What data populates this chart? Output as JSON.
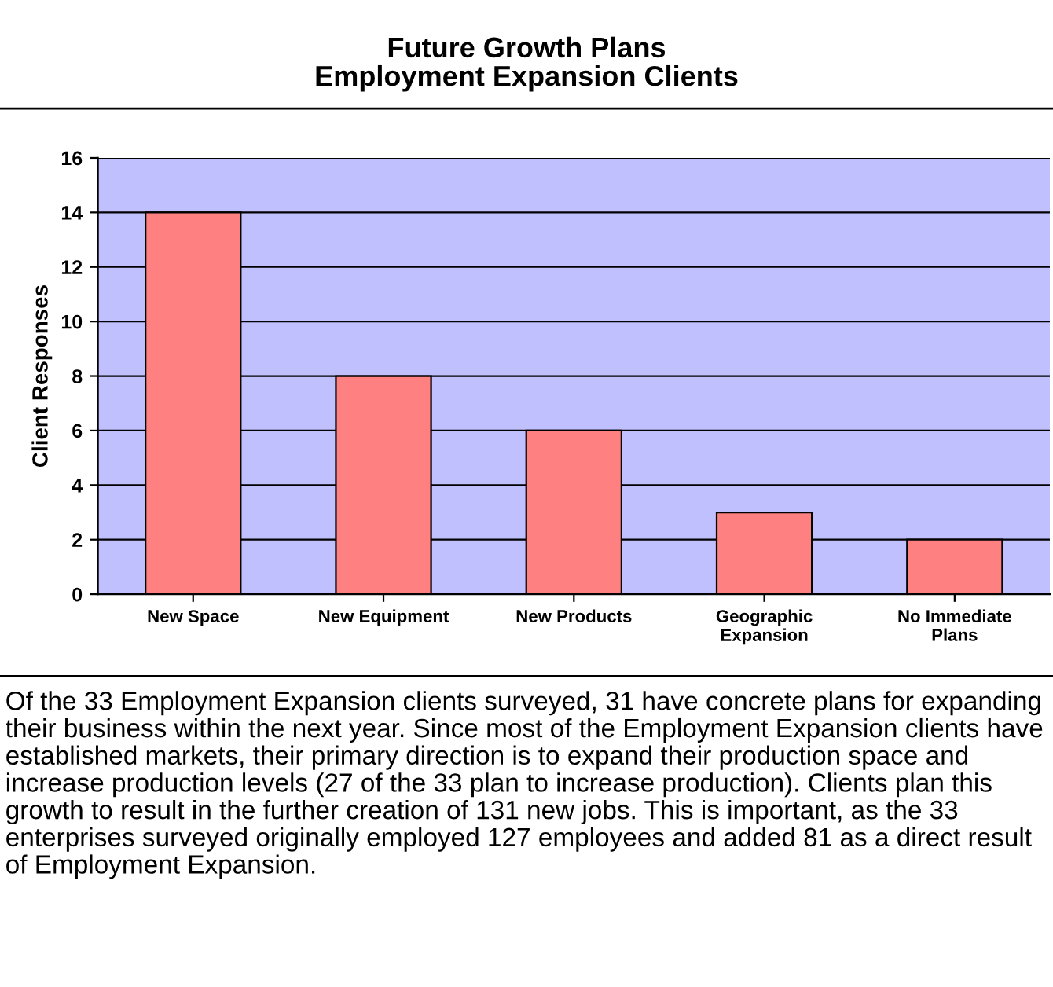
{
  "chart_data": {
    "type": "bar",
    "title": "Future Growth Plans\nEmployment Expansion Clients",
    "ylabel": "Client Responses",
    "categories": [
      "New Space",
      "New Equipment",
      "New Products",
      "Geographic\nExpansion",
      "No Immediate\nPlans"
    ],
    "values": [
      14,
      8,
      6,
      3,
      2
    ],
    "color": "#ff8080",
    "ylim": [
      0,
      16
    ],
    "yticks": [
      0,
      2,
      4,
      6,
      8,
      10,
      12,
      14,
      16
    ],
    "grid": "y",
    "annotations": [
      "Of the 33 Employment Expansion clients surveyed, 31 have concrete plans for expanding their business within the next year. Since most of the Employment Expansion clients have established markets, their primary direction is to expand their production space and increase production levels (27 of the 33 plan to increase production). Clients plan this growth to result in the further creation of 131 new jobs. This is important, as the 33 enterprises surveyed originally employed 127 employees and added 81 as a direct result of Employment Expansion."
    ]
  }
}
